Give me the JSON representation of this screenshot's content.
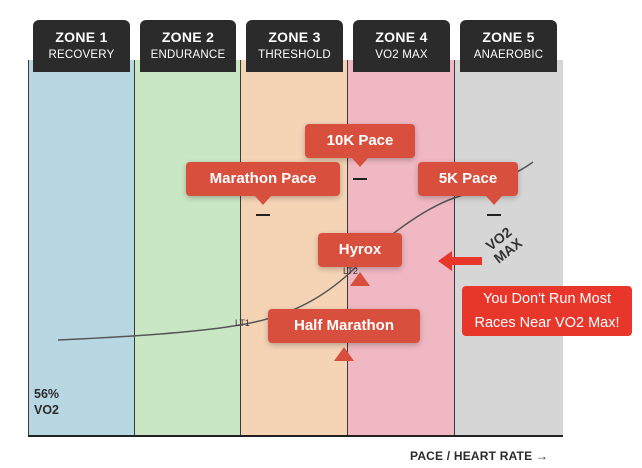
{
  "zones": [
    {
      "title": "ZONE 1",
      "subtitle": "RECOVERY",
      "color": "#b7d7e3"
    },
    {
      "title": "ZONE 2",
      "subtitle": "ENDURANCE",
      "color": "#c9e7c5"
    },
    {
      "title": "ZONE 3",
      "subtitle": "THRESHOLD",
      "color": "#f5d4b6"
    },
    {
      "title": "ZONE 4",
      "subtitle": "VO2 MAX",
      "color": "#f0b8c2"
    },
    {
      "title": "ZONE 5",
      "subtitle": "ANAEROBIC",
      "color": "#d6d6d6"
    }
  ],
  "callouts": {
    "ten_k": "10K Pace",
    "marathon": "Marathon Pace",
    "five_k": "5K Pace",
    "hyrox": "Hyrox",
    "half_marathon": "Half Marathon"
  },
  "thresholds": {
    "lt1": "LT1",
    "lt2": "LT2"
  },
  "vo2max_marker": {
    "line1": "VO2",
    "line2": "MAX"
  },
  "note": {
    "line1": "You Don't Run Most",
    "line2": "Races Near VO2 Max!"
  },
  "y_start": {
    "value": "56%",
    "label": "VO2"
  },
  "x_axis_label": "PACE / HEART RATE →",
  "colors": {
    "callout": "#d94f3d",
    "note": "#e8372a",
    "header": "#2b2b2b"
  }
}
